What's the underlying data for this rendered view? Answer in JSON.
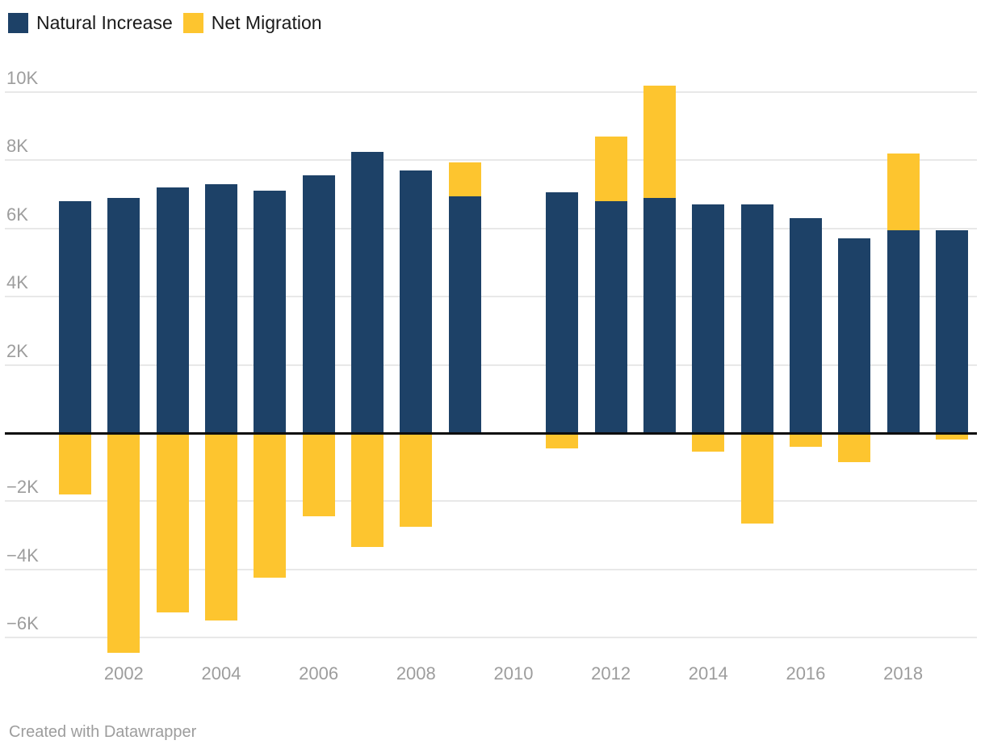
{
  "legend": {
    "items": [
      {
        "label": "Natural Increase"
      },
      {
        "label": "Net Migration"
      }
    ]
  },
  "footer": {
    "text": "Created with Datawrapper"
  },
  "colors": {
    "background": "#ffffff",
    "natural_increase": "#1d4167",
    "net_migration": "#fdc52f",
    "grid": "#e8e8e8",
    "zero_line": "#0d0d0d",
    "axis_text": "#9d9d9d",
    "legend_text": "#1a1a1a"
  },
  "chart_data": {
    "type": "bar",
    "stacked": true,
    "title": "",
    "xlabel": "",
    "ylabel": "",
    "grid": true,
    "legend_position": "top-left",
    "baseline": 0,
    "ylim": [
      -7000,
      10800
    ],
    "categories": [
      2001,
      2002,
      2003,
      2004,
      2005,
      2006,
      2007,
      2008,
      2009,
      2010,
      2011,
      2012,
      2013,
      2014,
      2015,
      2016,
      2017,
      2018,
      2019
    ],
    "series": [
      {
        "name": "Natural Increase",
        "color": "#1d4167",
        "values": [
          6800,
          6900,
          7200,
          7300,
          7100,
          7550,
          8250,
          7700,
          6950,
          null,
          7050,
          6800,
          6900,
          6700,
          6700,
          6300,
          5700,
          5950,
          5950
        ]
      },
      {
        "name": "Net Migration",
        "color": "#fdc52f",
        "values": [
          -1800,
          -6450,
          -5250,
          -5500,
          -4250,
          -2450,
          -3350,
          -2750,
          1000,
          null,
          -450,
          1900,
          3300,
          -550,
          -2650,
          -400,
          -850,
          2250,
          -200
        ]
      }
    ],
    "x_tick_labels": [
      "2002",
      "2004",
      "2006",
      "2008",
      "2010",
      "2012",
      "2014",
      "2016",
      "2018"
    ],
    "y_ticks": [
      {
        "value": 10000,
        "label": "10K"
      },
      {
        "value": 8000,
        "label": "8K"
      },
      {
        "value": 6000,
        "label": "6K"
      },
      {
        "value": 4000,
        "label": "4K"
      },
      {
        "value": 2000,
        "label": "2K"
      },
      {
        "value": -2000,
        "label": "−2K"
      },
      {
        "value": -4000,
        "label": "−4K"
      },
      {
        "value": -6000,
        "label": "−6K"
      }
    ]
  }
}
